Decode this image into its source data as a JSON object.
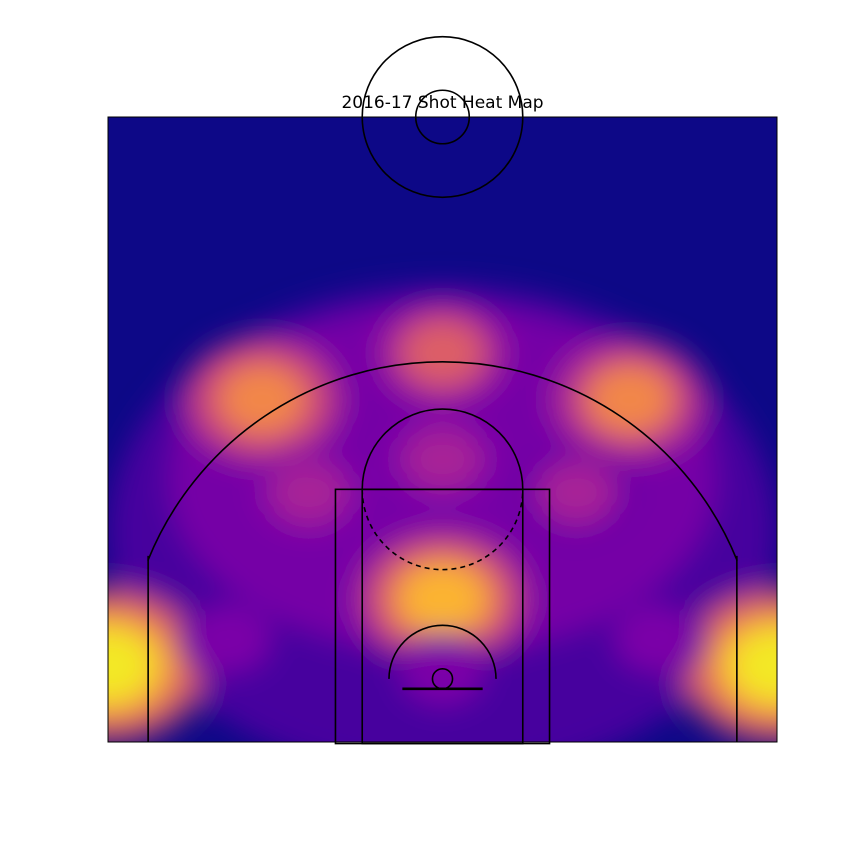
{
  "chart_data": {
    "type": "heatmap",
    "title": "2016-17 Shot Heat Map",
    "colormap": "plasma",
    "xlim": [
      -250,
      250
    ],
    "ylim": [
      422.5,
      -47.5
    ],
    "grid": false,
    "axes_visible": false,
    "density_hotspots": [
      {
        "name": "left-corner-three",
        "x": -250,
        "y": 10,
        "intensity": 1.0
      },
      {
        "name": "right-corner-three",
        "x": 250,
        "y": 10,
        "intensity": 1.0
      },
      {
        "name": "paint-short-range",
        "x": 0,
        "y": 60,
        "intensity": 0.82
      },
      {
        "name": "left-wing-three",
        "x": -135,
        "y": 210,
        "intensity": 0.72
      },
      {
        "name": "right-wing-three",
        "x": 140,
        "y": 210,
        "intensity": 0.7
      },
      {
        "name": "top-of-key-three",
        "x": 0,
        "y": 245,
        "intensity": 0.58
      },
      {
        "name": "left-elbow",
        "x": -100,
        "y": 140,
        "intensity": 0.4
      },
      {
        "name": "right-elbow",
        "x": 100,
        "y": 140,
        "intensity": 0.38
      },
      {
        "name": "free-throw-area",
        "x": 0,
        "y": 165,
        "intensity": 0.42
      },
      {
        "name": "left-mid-baseline",
        "x": -160,
        "y": 30,
        "intensity": 0.3
      },
      {
        "name": "right-mid-baseline",
        "x": 160,
        "y": 30,
        "intensity": 0.3
      },
      {
        "name": "restricted-area",
        "x": 0,
        "y": 5,
        "intensity": 0.28
      }
    ]
  },
  "colors": {
    "background": "#0d0887",
    "court_lines": "#000000",
    "palette": [
      "#0d0887",
      "#4c02a1",
      "#7e03a8",
      "#a92395",
      "#cc4778",
      "#e56b5d",
      "#f89441",
      "#fdc328",
      "#f0f921"
    ]
  }
}
